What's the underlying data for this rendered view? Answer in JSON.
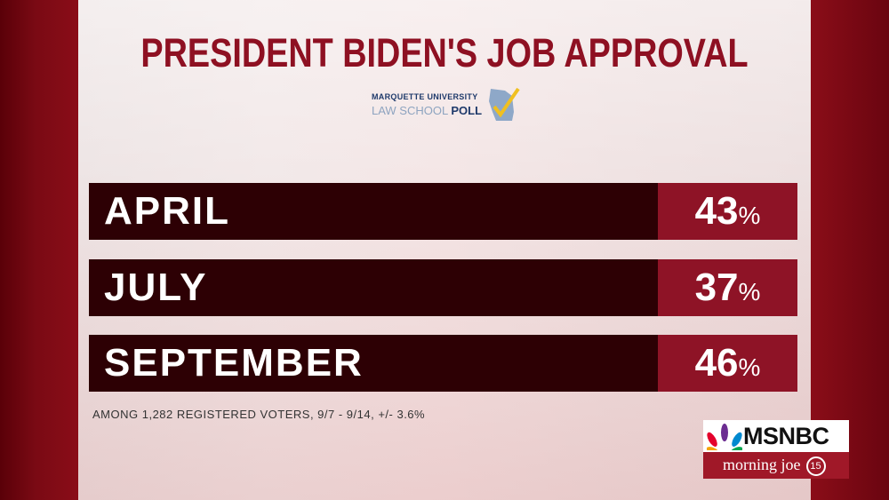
{
  "title": "PRESIDENT BIDEN'S JOB APPROVAL",
  "logo": {
    "line1": "MARQUETTE UNIVERSITY",
    "line2a": "LAW SCHOOL ",
    "line2b": "POLL"
  },
  "rows": [
    {
      "label": "APRIL",
      "value": "43",
      "unit": "%"
    },
    {
      "label": "JULY",
      "value": "37",
      "unit": "%"
    },
    {
      "label": "SEPTEMBER",
      "value": "46",
      "unit": "%"
    }
  ],
  "footnote": "AMONG 1,282 REGISTERED VOTERS, 9/7 - 9/14, +/- 3.6%",
  "network": {
    "name": "MSNBC",
    "show": "morning joe",
    "badge": "15"
  },
  "colors": {
    "title": "#8e1022",
    "row_bg": "#2d0004",
    "value_bg": "#8e1326"
  }
}
